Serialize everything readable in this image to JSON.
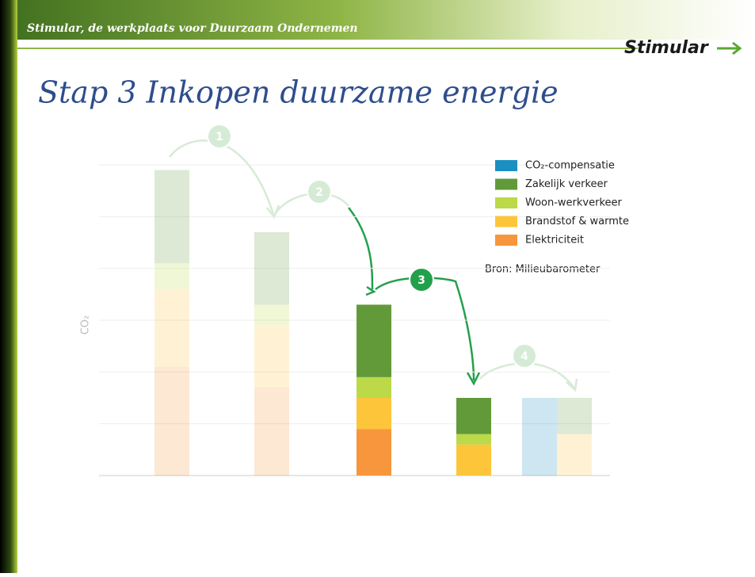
{
  "header": {
    "tagline": "Stimular, de werkplaats voor Duurzaam Ondernemen",
    "logo": "Stimular"
  },
  "title": "Stap 3 Inkopen duurzame energie",
  "chart_data": {
    "type": "stacked_bar",
    "y_label": "CO₂",
    "categories": [
      null,
      null,
      null,
      null,
      null,
      null
    ],
    "series": [
      {
        "name": "Elektriciteit",
        "color": "#f7963c",
        "values": [
          2.1,
          1.7,
          0.9,
          0,
          0,
          0
        ]
      },
      {
        "name": "Brandstof & warmte",
        "color": "#fdc53a",
        "values": [
          1.5,
          1.2,
          0.6,
          0.6,
          0,
          0.8
        ]
      },
      {
        "name": "Woon-werkverkeer",
        "color": "#bcd948",
        "values": [
          0.5,
          0.4,
          0.4,
          0.2,
          0,
          0
        ]
      },
      {
        "name": "Zakelijk verkeer",
        "color": "#629a3a",
        "values": [
          1.8,
          1.4,
          1.4,
          0.7,
          0,
          0.7
        ]
      },
      {
        "name": "CO₂-compensatie",
        "color": "#1b8fc0",
        "values": [
          0,
          0,
          0,
          0,
          1.5,
          0
        ]
      }
    ],
    "ylim": [
      0,
      6
    ],
    "yticks": [
      0,
      1,
      2,
      3,
      4,
      5,
      6
    ],
    "grid": true,
    "source": "Bron: Milieubarometer",
    "annotations": [
      "1",
      "2",
      "3",
      "4"
    ]
  }
}
